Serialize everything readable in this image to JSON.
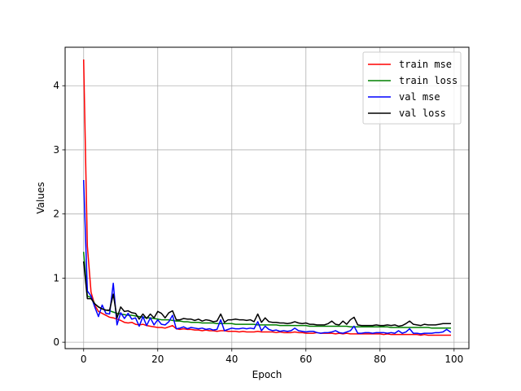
{
  "chart_data": {
    "type": "line",
    "title": "",
    "xlabel": "Epoch",
    "ylabel": "Values",
    "xlim": [
      -5,
      104
    ],
    "ylim": [
      -0.1,
      4.6
    ],
    "xticks": [
      0,
      20,
      40,
      60,
      80,
      100
    ],
    "yticks": [
      0,
      1,
      2,
      3,
      4
    ],
    "grid": true,
    "legend_position": "top-right",
    "x": [
      0,
      1,
      2,
      3,
      4,
      5,
      6,
      7,
      8,
      9,
      10,
      11,
      12,
      13,
      14,
      15,
      16,
      17,
      18,
      19,
      20,
      21,
      22,
      23,
      24,
      25,
      26,
      27,
      28,
      29,
      30,
      31,
      32,
      33,
      34,
      35,
      36,
      37,
      38,
      39,
      40,
      41,
      42,
      43,
      44,
      45,
      46,
      47,
      48,
      49,
      50,
      51,
      52,
      53,
      54,
      55,
      56,
      57,
      58,
      59,
      60,
      61,
      62,
      63,
      64,
      65,
      66,
      67,
      68,
      69,
      70,
      71,
      72,
      73,
      74,
      75,
      76,
      77,
      78,
      79,
      80,
      81,
      82,
      83,
      84,
      85,
      86,
      87,
      88,
      89,
      90,
      91,
      92,
      93,
      94,
      95,
      96,
      97,
      98,
      99
    ],
    "series": [
      {
        "name": "train mse",
        "color": "#ff0000",
        "values": [
          4.4,
          1.5,
          0.78,
          0.58,
          0.48,
          0.45,
          0.42,
          0.39,
          0.38,
          0.36,
          0.34,
          0.31,
          0.3,
          0.31,
          0.28,
          0.27,
          0.28,
          0.26,
          0.25,
          0.24,
          0.23,
          0.23,
          0.22,
          0.24,
          0.26,
          0.21,
          0.2,
          0.21,
          0.2,
          0.2,
          0.19,
          0.19,
          0.18,
          0.19,
          0.18,
          0.18,
          0.17,
          0.18,
          0.18,
          0.17,
          0.17,
          0.17,
          0.16,
          0.17,
          0.16,
          0.16,
          0.16,
          0.17,
          0.16,
          0.16,
          0.16,
          0.16,
          0.15,
          0.16,
          0.15,
          0.15,
          0.15,
          0.16,
          0.15,
          0.15,
          0.14,
          0.14,
          0.14,
          0.15,
          0.14,
          0.14,
          0.14,
          0.14,
          0.13,
          0.14,
          0.13,
          0.14,
          0.13,
          0.13,
          0.13,
          0.13,
          0.13,
          0.13,
          0.13,
          0.13,
          0.13,
          0.12,
          0.13,
          0.12,
          0.12,
          0.12,
          0.12,
          0.12,
          0.12,
          0.12,
          0.12,
          0.11,
          0.12,
          0.11,
          0.11,
          0.11,
          0.11,
          0.11,
          0.11,
          0.11
        ]
      },
      {
        "name": "train loss",
        "color": "#008000",
        "values": [
          1.4,
          0.72,
          0.7,
          0.6,
          0.55,
          0.52,
          0.5,
          0.49,
          0.47,
          0.45,
          0.44,
          0.43,
          0.42,
          0.42,
          0.41,
          0.4,
          0.39,
          0.38,
          0.38,
          0.37,
          0.36,
          0.35,
          0.35,
          0.35,
          0.34,
          0.33,
          0.33,
          0.32,
          0.32,
          0.31,
          0.31,
          0.31,
          0.3,
          0.3,
          0.3,
          0.3,
          0.29,
          0.29,
          0.29,
          0.29,
          0.29,
          0.28,
          0.28,
          0.28,
          0.28,
          0.28,
          0.28,
          0.27,
          0.27,
          0.27,
          0.27,
          0.27,
          0.27,
          0.26,
          0.26,
          0.26,
          0.26,
          0.26,
          0.26,
          0.26,
          0.26,
          0.25,
          0.25,
          0.25,
          0.25,
          0.25,
          0.25,
          0.25,
          0.25,
          0.25,
          0.25,
          0.25,
          0.24,
          0.24,
          0.24,
          0.24,
          0.24,
          0.24,
          0.24,
          0.24,
          0.24,
          0.24,
          0.24,
          0.23,
          0.23,
          0.23,
          0.23,
          0.23,
          0.23,
          0.23,
          0.23,
          0.23,
          0.23,
          0.23,
          0.22,
          0.22,
          0.22,
          0.22,
          0.22,
          0.22
        ]
      },
      {
        "name": "val mse",
        "color": "#0000ff",
        "values": [
          2.52,
          0.8,
          0.72,
          0.55,
          0.4,
          0.58,
          0.45,
          0.44,
          0.92,
          0.27,
          0.46,
          0.37,
          0.45,
          0.36,
          0.38,
          0.25,
          0.4,
          0.26,
          0.38,
          0.27,
          0.35,
          0.28,
          0.27,
          0.32,
          0.42,
          0.21,
          0.22,
          0.24,
          0.21,
          0.23,
          0.22,
          0.21,
          0.22,
          0.2,
          0.21,
          0.19,
          0.2,
          0.35,
          0.18,
          0.2,
          0.22,
          0.21,
          0.21,
          0.22,
          0.21,
          0.22,
          0.21,
          0.32,
          0.18,
          0.25,
          0.2,
          0.18,
          0.19,
          0.17,
          0.18,
          0.17,
          0.18,
          0.22,
          0.18,
          0.17,
          0.16,
          0.17,
          0.17,
          0.15,
          0.14,
          0.15,
          0.15,
          0.16,
          0.18,
          0.15,
          0.14,
          0.16,
          0.18,
          0.25,
          0.14,
          0.14,
          0.15,
          0.15,
          0.14,
          0.15,
          0.15,
          0.15,
          0.14,
          0.15,
          0.14,
          0.18,
          0.14,
          0.16,
          0.21,
          0.14,
          0.14,
          0.13,
          0.14,
          0.14,
          0.14,
          0.15,
          0.15,
          0.16,
          0.2,
          0.16
        ]
      },
      {
        "name": "val loss",
        "color": "#000000",
        "values": [
          1.25,
          0.68,
          0.68,
          0.6,
          0.55,
          0.52,
          0.5,
          0.5,
          0.75,
          0.38,
          0.55,
          0.48,
          0.49,
          0.46,
          0.45,
          0.36,
          0.44,
          0.37,
          0.44,
          0.38,
          0.48,
          0.45,
          0.38,
          0.46,
          0.49,
          0.35,
          0.35,
          0.37,
          0.36,
          0.36,
          0.34,
          0.36,
          0.33,
          0.35,
          0.34,
          0.32,
          0.33,
          0.44,
          0.31,
          0.35,
          0.35,
          0.36,
          0.35,
          0.35,
          0.34,
          0.35,
          0.32,
          0.44,
          0.31,
          0.38,
          0.32,
          0.31,
          0.31,
          0.3,
          0.3,
          0.29,
          0.3,
          0.32,
          0.3,
          0.29,
          0.3,
          0.28,
          0.28,
          0.27,
          0.27,
          0.27,
          0.29,
          0.33,
          0.28,
          0.27,
          0.33,
          0.28,
          0.35,
          0.39,
          0.27,
          0.26,
          0.26,
          0.26,
          0.26,
          0.27,
          0.26,
          0.26,
          0.27,
          0.26,
          0.27,
          0.25,
          0.26,
          0.29,
          0.33,
          0.28,
          0.27,
          0.26,
          0.28,
          0.27,
          0.27,
          0.27,
          0.28,
          0.29,
          0.29,
          0.29
        ]
      }
    ]
  }
}
